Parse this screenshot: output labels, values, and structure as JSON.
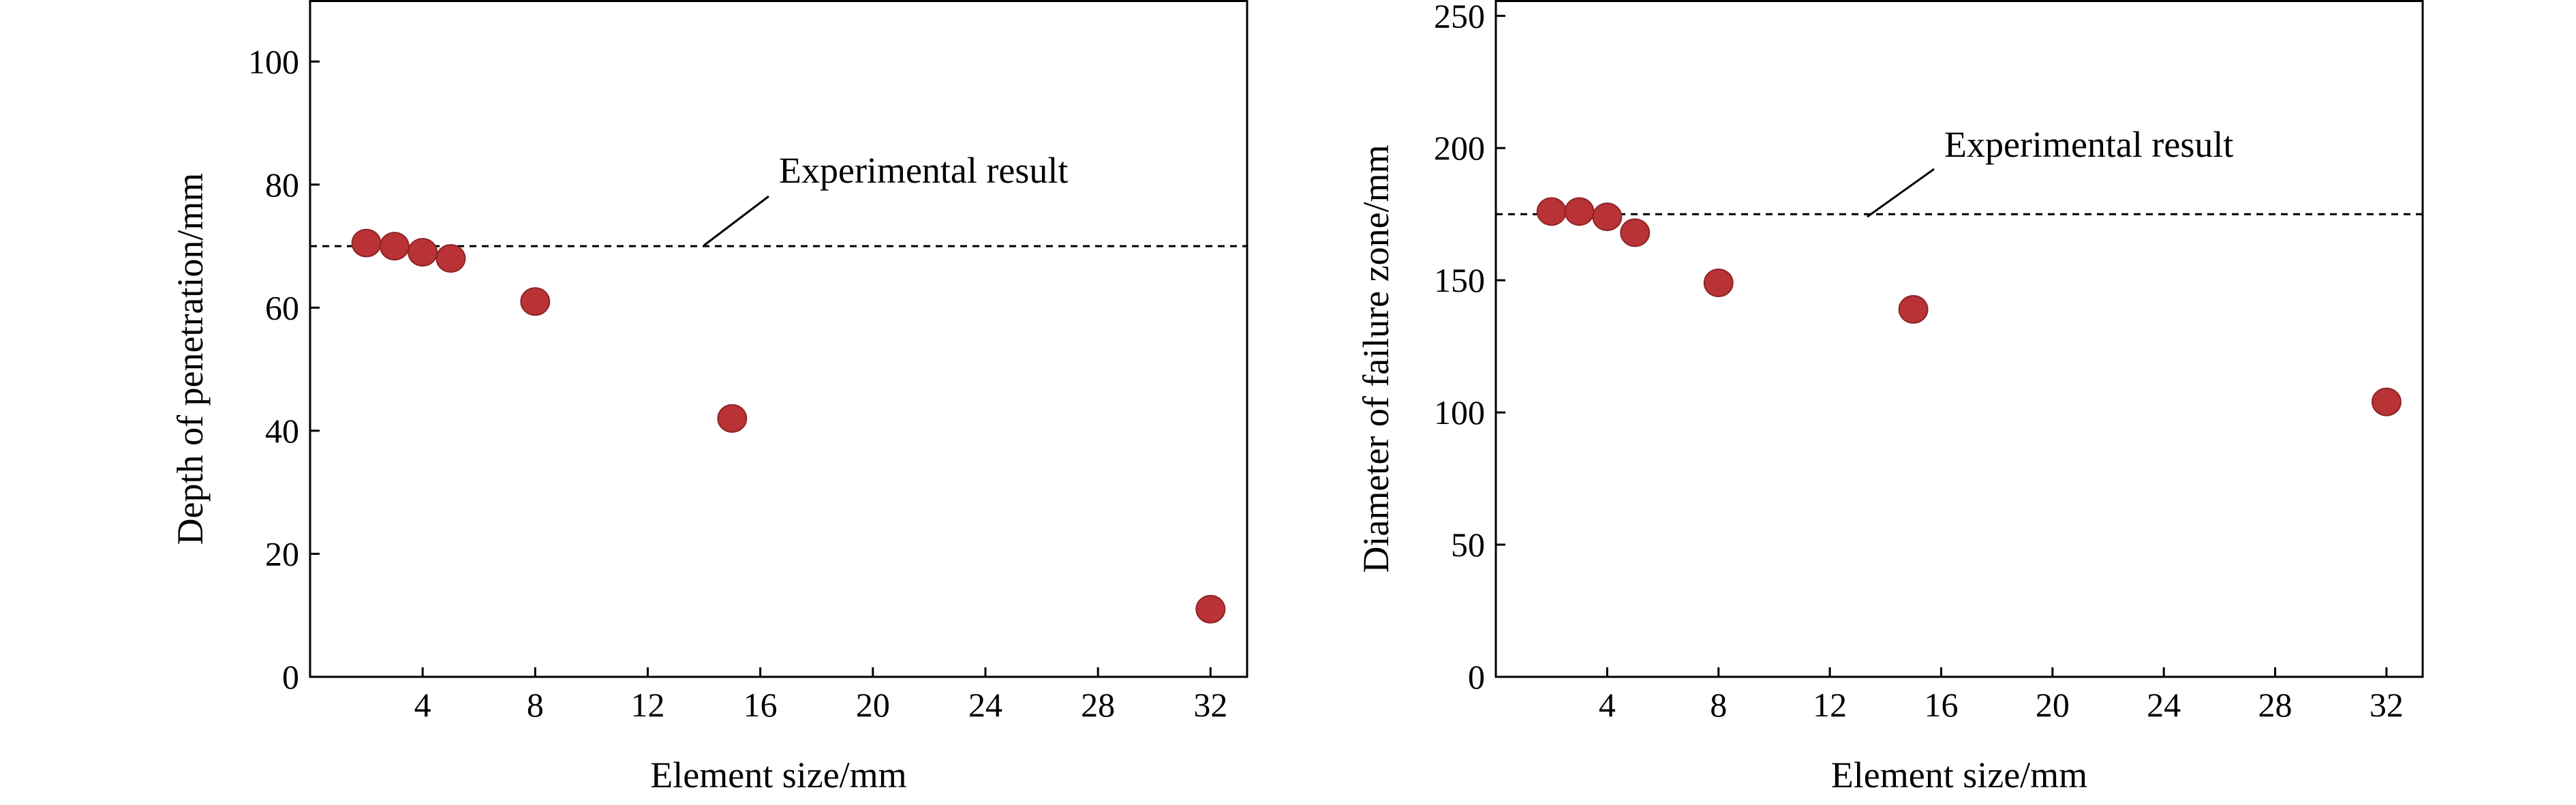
{
  "chart_data": [
    {
      "type": "scatter",
      "xlabel": "Element size/mm",
      "ylabel": "Depth of penetration/mm",
      "xlim": [
        0,
        33.3
      ],
      "ylim": [
        0,
        110
      ],
      "xticks": [
        4,
        8,
        12,
        16,
        20,
        24,
        28,
        32
      ],
      "yticks": [
        0,
        20,
        40,
        60,
        80,
        100
      ],
      "grid": false,
      "series": [
        {
          "x": [
            2,
            3,
            4,
            5,
            8,
            15,
            32
          ],
          "y": [
            70.5,
            70,
            69,
            68,
            61,
            42,
            11
          ],
          "color": "#b83236"
        }
      ],
      "reference_line": {
        "y": 70,
        "label": "Experimental result"
      }
    },
    {
      "type": "scatter",
      "xlabel": "Element size/mm",
      "ylabel": "Diameter of failure zone/mm",
      "xlim": [
        0,
        33.3
      ],
      "ylim": [
        0,
        256
      ],
      "xticks": [
        4,
        8,
        12,
        16,
        20,
        24,
        28,
        32
      ],
      "yticks": [
        0,
        50,
        100,
        150,
        200,
        250
      ],
      "grid": false,
      "series": [
        {
          "x": [
            2,
            3,
            4,
            5,
            8,
            15,
            32
          ],
          "y": [
            176,
            176,
            174,
            168,
            149,
            139,
            104
          ],
          "color": "#b83236"
        }
      ],
      "reference_line": {
        "y": 175,
        "label": "Experimental result"
      }
    }
  ]
}
